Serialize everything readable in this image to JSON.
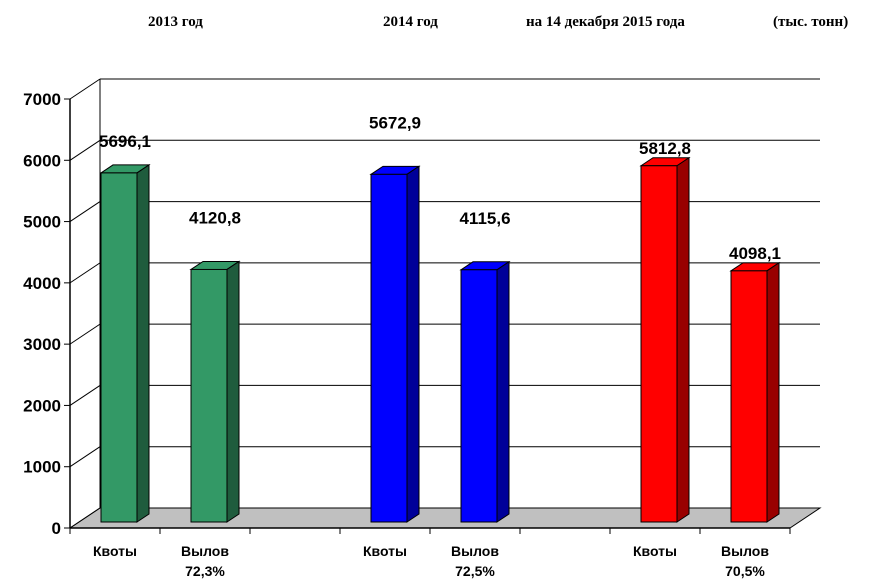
{
  "header": {
    "period_1": "2013  год",
    "period_2": "2014  год",
    "period_3": "на 14 декабря 2015 года",
    "units": "(тыс. тонн)"
  },
  "chart_data": {
    "type": "bar",
    "title": "",
    "xlabel": "",
    "ylabel": "",
    "ylim": [
      0,
      7000
    ],
    "yticks": [
      "0",
      "1000",
      "2000",
      "3000",
      "4000",
      "5000",
      "6000",
      "7000"
    ],
    "grid": true,
    "three_d": true,
    "bars": [
      {
        "group": "2013  год",
        "category": "Квоты",
        "value": 5696.1,
        "value_label": "5696,1",
        "color": "#339966",
        "side": "#1f5c3d"
      },
      {
        "group": "2013  год",
        "category": "Вылов",
        "sublabel": "72,3%",
        "value": 4120.8,
        "value_label": "4120,8",
        "color": "#339966",
        "side": "#1f5c3d"
      },
      {
        "group": "2014  год",
        "category": "Квоты",
        "value": 5672.9,
        "value_label": "5672,9",
        "color": "#0000ff",
        "side": "#000099"
      },
      {
        "group": "2014  год",
        "category": "Вылов",
        "sublabel": "72,5%",
        "value": 4115.6,
        "value_label": "4115,6",
        "color": "#0000ff",
        "side": "#000099"
      },
      {
        "group": "на 14 декабря 2015 года",
        "category": "Квоты",
        "value": 5812.8,
        "value_label": "5812,8",
        "color": "#ff0000",
        "side": "#990000"
      },
      {
        "group": "на 14 декабря 2015 года",
        "category": "Вылов",
        "sublabel": "70,5%",
        "value": 4098.1,
        "value_label": "4098,1",
        "color": "#ff0000",
        "side": "#990000"
      }
    ]
  }
}
